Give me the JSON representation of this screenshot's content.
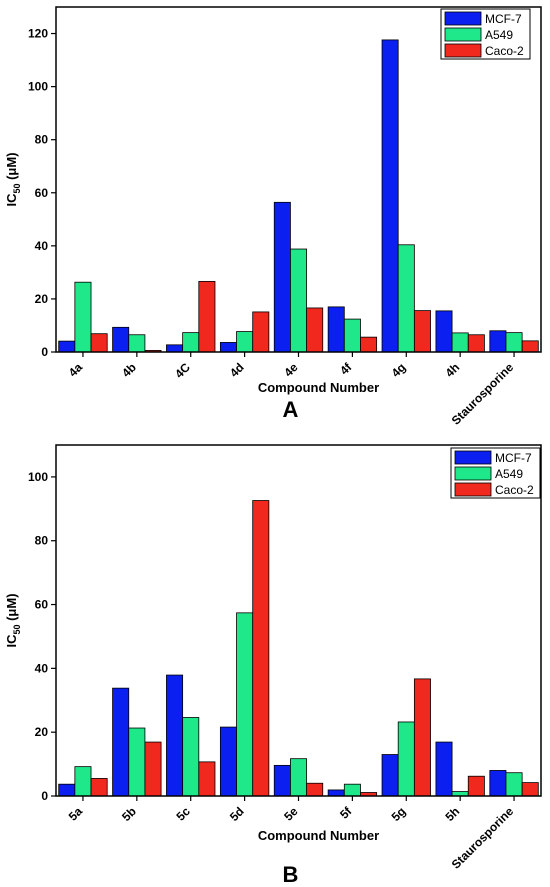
{
  "chart_data": [
    {
      "type": "bar",
      "panel_label": "A",
      "xlabel": "Compound Number",
      "ylabel": "IC",
      "ylabel_sub": "50",
      "ylabel_unit": " (μM)",
      "categories": [
        "4a",
        "4b",
        "4C",
        "4d",
        "4e",
        "4f",
        "4g",
        "4h",
        "Staurosporine"
      ],
      "ylim": [
        0,
        130
      ],
      "yticks": [
        0,
        20,
        40,
        60,
        80,
        100,
        120
      ],
      "legend_position": "top-right",
      "series": [
        {
          "name": "MCF-7",
          "color": "#0a1ff0",
          "values": [
            4.1,
            9.3,
            2.7,
            3.6,
            56.4,
            17.0,
            117.6,
            15.5,
            8.0
          ]
        },
        {
          "name": "A549",
          "color": "#1ee88a",
          "values": [
            26.3,
            6.5,
            7.3,
            7.7,
            38.8,
            12.4,
            40.4,
            7.2,
            7.3
          ]
        },
        {
          "name": "Caco-2",
          "color": "#f0281e",
          "values": [
            6.9,
            0.6,
            26.6,
            15.1,
            16.6,
            5.6,
            15.6,
            6.5,
            4.2
          ]
        }
      ]
    },
    {
      "type": "bar",
      "panel_label": "B",
      "xlabel": "Compound Number",
      "ylabel": "IC",
      "ylabel_sub": "50",
      "ylabel_unit": " (μM)",
      "categories": [
        "5a",
        "5b",
        "5c",
        "5d",
        "5e",
        "5f",
        "5g",
        "5h",
        "Staurosporine"
      ],
      "ylim": [
        0,
        110
      ],
      "yticks": [
        0,
        20,
        40,
        60,
        80,
        100
      ],
      "legend_position": "top-right",
      "series": [
        {
          "name": "MCF-7",
          "color": "#0a1ff0",
          "values": [
            3.7,
            33.8,
            37.9,
            21.6,
            9.6,
            1.9,
            13.0,
            16.9,
            8.0
          ]
        },
        {
          "name": "A549",
          "color": "#1ee88a",
          "values": [
            9.2,
            21.3,
            24.6,
            57.4,
            11.7,
            3.7,
            23.2,
            1.4,
            7.3
          ]
        },
        {
          "name": "Caco-2",
          "color": "#f0281e",
          "values": [
            5.5,
            16.9,
            10.7,
            92.6,
            4.0,
            1.1,
            36.7,
            6.2,
            4.2
          ]
        }
      ]
    }
  ]
}
